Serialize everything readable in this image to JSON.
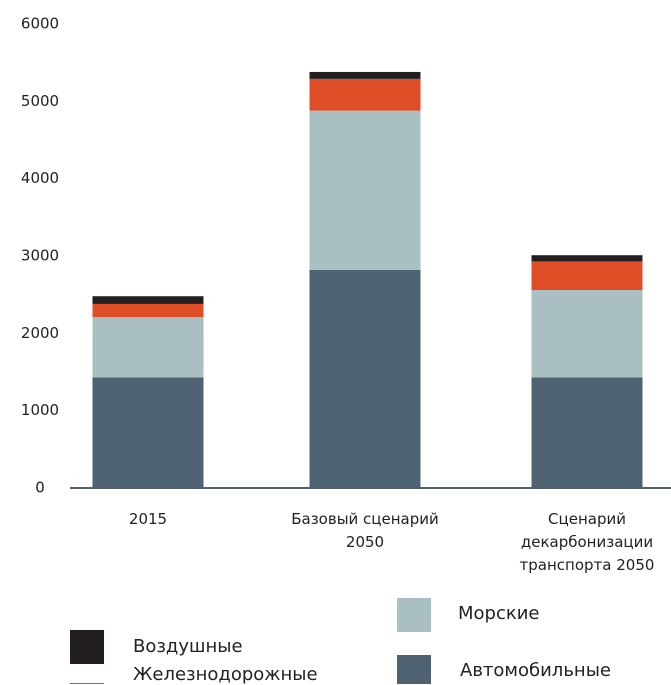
{
  "chart_data": {
    "type": "bar",
    "stacked": true,
    "categories": [
      "2015",
      "Базовый сценарий\n2050",
      "Сценарий\nдекарбонизации\nтранспорта  2050"
    ],
    "series": [
      {
        "name": "Автомобильные",
        "color": "#4f6272",
        "values": [
          1430,
          2820,
          1430
        ]
      },
      {
        "name": "Морские",
        "color": "#a9bfc2",
        "values": [
          780,
          2060,
          1130
        ]
      },
      {
        "name": "Железнодорожные",
        "color": "#e04e27",
        "values": [
          170,
          410,
          370
        ]
      },
      {
        "name": "Воздушные",
        "color": "#231f20",
        "values": [
          100,
          90,
          80
        ]
      }
    ],
    "ylim": [
      0,
      6000
    ],
    "yticks": [
      0,
      1000,
      2000,
      3000,
      4000,
      5000,
      6000
    ]
  }
}
